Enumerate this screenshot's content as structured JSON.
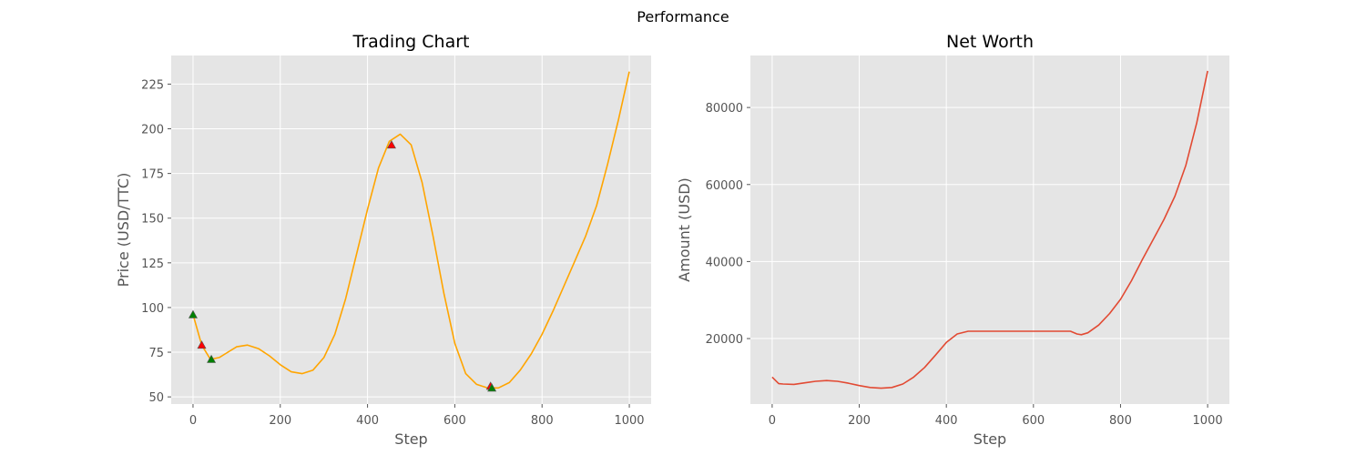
{
  "figure": {
    "suptitle": "Performance"
  },
  "chart_data": [
    {
      "type": "line",
      "title": "Trading Chart",
      "xlabel": "Step",
      "ylabel": "Price (USD/TTC)",
      "xlim": [
        -50,
        1050
      ],
      "ylim": [
        46,
        241
      ],
      "xticks": [
        0,
        200,
        400,
        600,
        800,
        1000
      ],
      "yticks": [
        50,
        75,
        100,
        125,
        150,
        175,
        200,
        225
      ],
      "grid": true,
      "series": [
        {
          "color": "#FFA500",
          "x": [
            0,
            20,
            40,
            60,
            80,
            100,
            125,
            150,
            175,
            200,
            225,
            250,
            275,
            300,
            325,
            350,
            375,
            400,
            425,
            450,
            475,
            500,
            525,
            550,
            575,
            600,
            625,
            650,
            675,
            700,
            725,
            750,
            775,
            800,
            825,
            850,
            875,
            900,
            925,
            950,
            975,
            1000
          ],
          "y": [
            96,
            79,
            71,
            72,
            75,
            78,
            79,
            77,
            73,
            68,
            64,
            63,
            65,
            72,
            85,
            105,
            130,
            155,
            178,
            193,
            197,
            191,
            170,
            140,
            108,
            80,
            63,
            57,
            55,
            55,
            58,
            65,
            74,
            85,
            98,
            112,
            126,
            140,
            157,
            180,
            205,
            232
          ]
        }
      ],
      "markers": [
        {
          "x": 0,
          "y": 96,
          "color": "#008000"
        },
        {
          "x": 20,
          "y": 79,
          "color": "#FF0000"
        },
        {
          "x": 42,
          "y": 71,
          "color": "#008000"
        },
        {
          "x": 455,
          "y": 191,
          "color": "#FF0000"
        },
        {
          "x": 682,
          "y": 56,
          "color": "#FF0000"
        },
        {
          "x": 685,
          "y": 55,
          "color": "#008000"
        }
      ]
    },
    {
      "type": "line",
      "title": "Net Worth",
      "xlabel": "Step",
      "ylabel": "Amount (USD)",
      "xlim": [
        -50,
        1050
      ],
      "ylim": [
        3000,
        93500
      ],
      "xticks": [
        0,
        200,
        400,
        600,
        800,
        1000
      ],
      "yticks": [
        20000,
        40000,
        60000,
        80000
      ],
      "grid": true,
      "series": [
        {
          "color": "#E24A33",
          "x": [
            0,
            15,
            25,
            50,
            75,
            100,
            125,
            150,
            175,
            200,
            225,
            250,
            275,
            300,
            325,
            350,
            375,
            400,
            425,
            450,
            455,
            500,
            550,
            600,
            650,
            685,
            700,
            710,
            725,
            750,
            775,
            800,
            825,
            850,
            875,
            900,
            925,
            950,
            975,
            1000
          ],
          "y": [
            10000,
            8300,
            8200,
            8100,
            8500,
            8900,
            9100,
            8900,
            8400,
            7800,
            7300,
            7100,
            7300,
            8200,
            10000,
            12500,
            15700,
            19000,
            21200,
            21900,
            21900,
            21900,
            21900,
            21900,
            21900,
            21900,
            21200,
            21000,
            21500,
            23500,
            26500,
            30200,
            35000,
            40500,
            45700,
            51000,
            57000,
            65000,
            76000,
            89500
          ]
        }
      ]
    }
  ]
}
